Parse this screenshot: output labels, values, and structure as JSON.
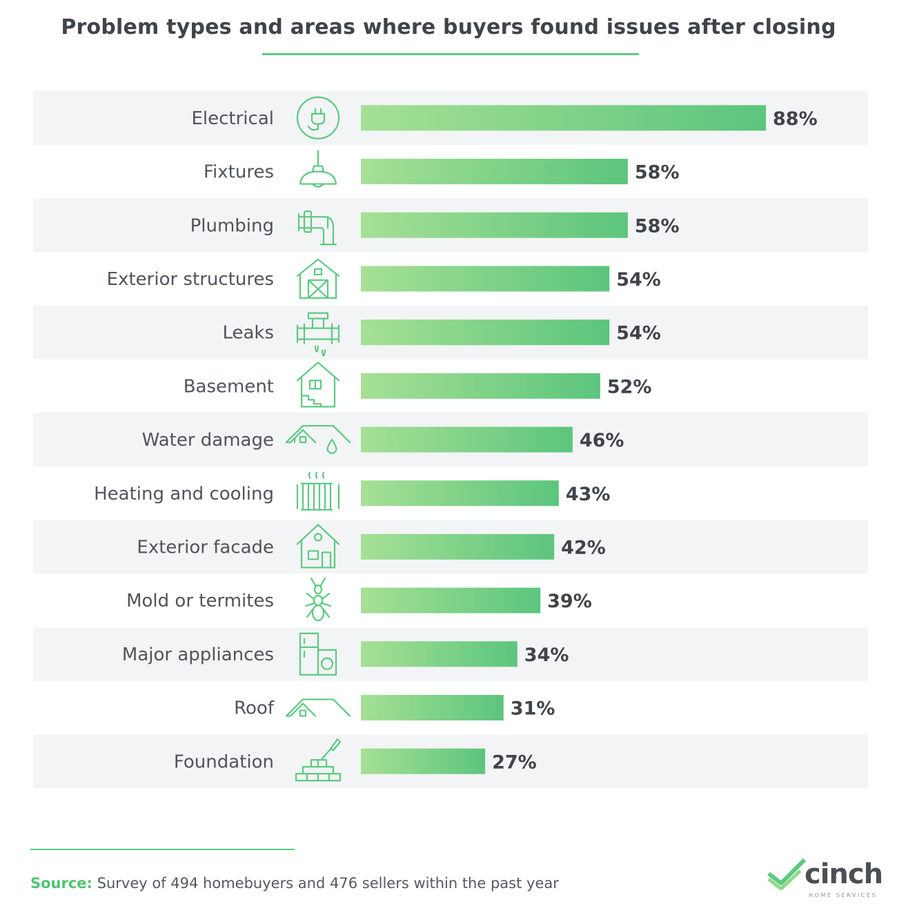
{
  "title": "Problem types and areas where buyers found issues after closing",
  "source": {
    "label": "Source:",
    "text": "Survey of 494 homebuyers and 476 sellers within the past year"
  },
  "brand": {
    "name": "cinch",
    "tagline": "HOME SERVICES"
  },
  "colors": {
    "accent": "#5cc981",
    "bar_start": "#a6e095",
    "bar_end": "#5cc57d",
    "row_band": "#f3f4f5"
  },
  "chart_data": {
    "type": "bar",
    "orientation": "horizontal",
    "title": "Problem types and areas where buyers found issues after closing",
    "value_suffix": "%",
    "xlim": [
      0,
      100
    ],
    "grid": false,
    "categories": [
      "Electrical",
      "Fixtures",
      "Plumbing",
      "Exterior structures",
      "Leaks",
      "Basement",
      "Water damage",
      "Heating and cooling",
      "Exterior facade",
      "Mold or termites",
      "Major appliances",
      "Roof",
      "Foundation"
    ],
    "values": [
      88,
      58,
      58,
      54,
      54,
      52,
      46,
      43,
      42,
      39,
      34,
      31,
      27
    ],
    "value_labels": [
      "88%",
      "58%",
      "58%",
      "54%",
      "54%",
      "52%",
      "46%",
      "43%",
      "42%",
      "39%",
      "34%",
      "31%",
      "27%"
    ],
    "icons": [
      "plug-icon",
      "pendant-lamp-icon",
      "pipe-icon",
      "shed-icon",
      "leaking-pipe-icon",
      "basement-house-icon",
      "water-damage-roof-icon",
      "radiator-icon",
      "house-facade-icon",
      "termite-icon",
      "appliances-icon",
      "roof-icon",
      "bricks-trowel-icon"
    ]
  }
}
